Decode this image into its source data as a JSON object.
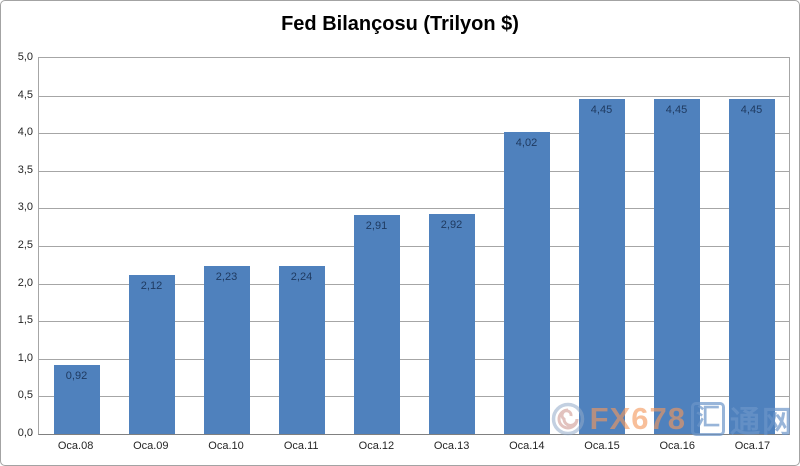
{
  "chart_data": {
    "type": "bar",
    "title": "Fed Bilançosu (Trilyon $)",
    "categories": [
      "Oca.08",
      "Oca.09",
      "Oca.10",
      "Oca.11",
      "Oca.12",
      "Oca.13",
      "Oca.14",
      "Oca.15",
      "Oca.16",
      "Oca.17"
    ],
    "values": [
      0.92,
      2.12,
      2.23,
      2.24,
      2.91,
      2.92,
      4.02,
      4.45,
      4.45,
      4.45
    ],
    "value_labels": [
      "0,92",
      "2,12",
      "2,23",
      "2,24",
      "2,91",
      "2,92",
      "4,02",
      "4,45",
      "4,45",
      "4,45"
    ],
    "xlabel": "",
    "ylabel": "",
    "ylim": [
      0,
      5
    ],
    "ytick_step": 0.5,
    "ytick_labels": [
      "0,0",
      "0,5",
      "1,0",
      "1,5",
      "2,0",
      "2,5",
      "3,0",
      "3,5",
      "4,0",
      "4,5",
      "5,0"
    ],
    "grid": true,
    "legend": false,
    "bar_color": "#4f81bd",
    "bar_label_color": "#1f3a60",
    "gridline_color": "#a6a6a6",
    "axis_line_color": "#808080"
  },
  "watermark": {
    "swirl_icon": "swirl-logo-icon",
    "fx_text": "FX678",
    "cn_boxed": "汇",
    "cn_rest": "通网"
  }
}
